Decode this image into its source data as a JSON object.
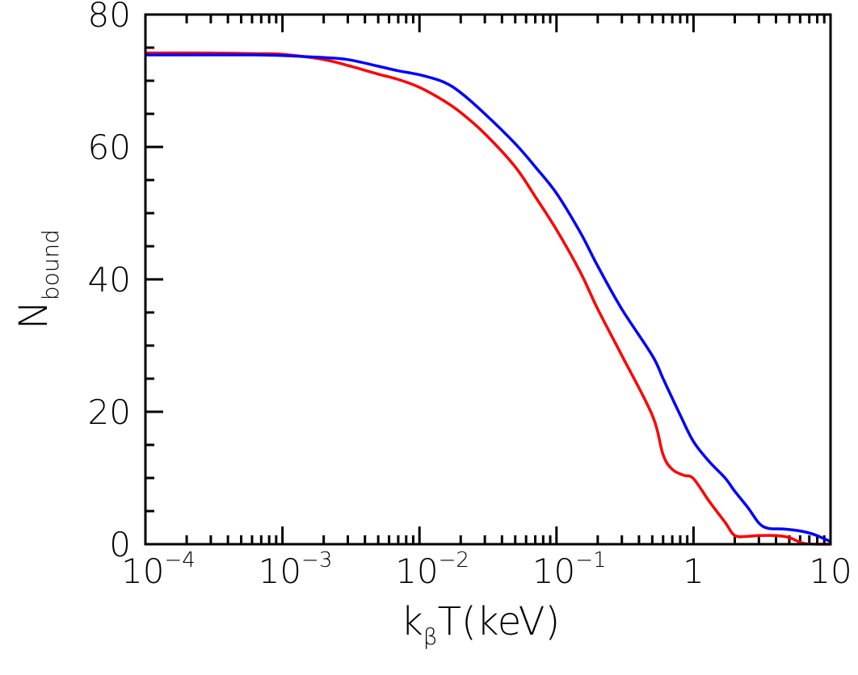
{
  "chart_data": {
    "type": "line",
    "xlabel": {
      "main": "k",
      "sub": "β",
      "rest": "T(keV)"
    },
    "ylabel": {
      "main": "N",
      "sub": "bound"
    },
    "xscale": "log",
    "xlim": [
      0.0001,
      10
    ],
    "ylim": [
      0,
      80
    ],
    "x_tick_labels": [
      {
        "value": 0.0001,
        "base": "10",
        "exp": "−4"
      },
      {
        "value": 0.001,
        "base": "10",
        "exp": "−3"
      },
      {
        "value": 0.01,
        "base": "10",
        "exp": "−2"
      },
      {
        "value": 0.1,
        "base": "10",
        "exp": "−1"
      },
      {
        "value": 1,
        "base": "1",
        "exp": ""
      },
      {
        "value": 10,
        "base": "10",
        "exp": ""
      }
    ],
    "y_tick_labels": [
      {
        "value": 0,
        "label": "0"
      },
      {
        "value": 20,
        "label": "20"
      },
      {
        "value": 40,
        "label": "40"
      },
      {
        "value": 60,
        "label": "60"
      },
      {
        "value": 80,
        "label": "80"
      }
    ],
    "grid": false,
    "legend": "none",
    "series": [
      {
        "color": "#ff0000",
        "points": [
          [
            0.0001,
            74.2
          ],
          [
            0.0003,
            74.2
          ],
          [
            0.0006,
            74.1
          ],
          [
            0.001,
            74.0
          ],
          [
            0.002,
            73.2
          ],
          [
            0.003,
            72.3
          ],
          [
            0.005,
            71.0
          ],
          [
            0.007,
            70.2
          ],
          [
            0.01,
            69.0
          ],
          [
            0.015,
            67.0
          ],
          [
            0.02,
            65.2
          ],
          [
            0.03,
            62.0
          ],
          [
            0.05,
            57.0
          ],
          [
            0.07,
            52.5
          ],
          [
            0.1,
            47.5
          ],
          [
            0.15,
            41.0
          ],
          [
            0.2,
            35.5
          ],
          [
            0.3,
            28.5
          ],
          [
            0.5,
            19.5
          ],
          [
            0.6,
            13.5
          ],
          [
            0.7,
            11.3
          ],
          [
            0.85,
            10.4
          ],
          [
            1.0,
            9.9
          ],
          [
            1.3,
            6.5
          ],
          [
            1.7,
            3.3
          ],
          [
            2.0,
            1.3
          ],
          [
            2.5,
            1.2
          ],
          [
            3.0,
            1.3
          ],
          [
            4.0,
            1.3
          ],
          [
            5.0,
            1.0
          ],
          [
            6.5,
            0.1
          ],
          [
            10.0,
            0.0
          ]
        ]
      },
      {
        "color": "#0000ff",
        "points": [
          [
            0.0001,
            73.9
          ],
          [
            0.0003,
            73.9
          ],
          [
            0.0006,
            73.9
          ],
          [
            0.001,
            73.8
          ],
          [
            0.002,
            73.5
          ],
          [
            0.003,
            73.2
          ],
          [
            0.005,
            72.2
          ],
          [
            0.007,
            71.5
          ],
          [
            0.01,
            70.9
          ],
          [
            0.015,
            69.8
          ],
          [
            0.02,
            68.2
          ],
          [
            0.03,
            65.0
          ],
          [
            0.05,
            60.5
          ],
          [
            0.07,
            57.0
          ],
          [
            0.1,
            53.0
          ],
          [
            0.15,
            47.0
          ],
          [
            0.2,
            42.0
          ],
          [
            0.3,
            35.5
          ],
          [
            0.5,
            28.5
          ],
          [
            0.6,
            25.0
          ],
          [
            0.8,
            19.5
          ],
          [
            1.0,
            15.5
          ],
          [
            1.3,
            12.5
          ],
          [
            1.7,
            10.0
          ],
          [
            2.0,
            8.0
          ],
          [
            2.5,
            5.5
          ],
          [
            3.0,
            3.2
          ],
          [
            3.5,
            2.4
          ],
          [
            4.5,
            2.3
          ],
          [
            6.0,
            2.0
          ],
          [
            7.5,
            1.5
          ],
          [
            10.0,
            0.4
          ]
        ]
      }
    ]
  }
}
